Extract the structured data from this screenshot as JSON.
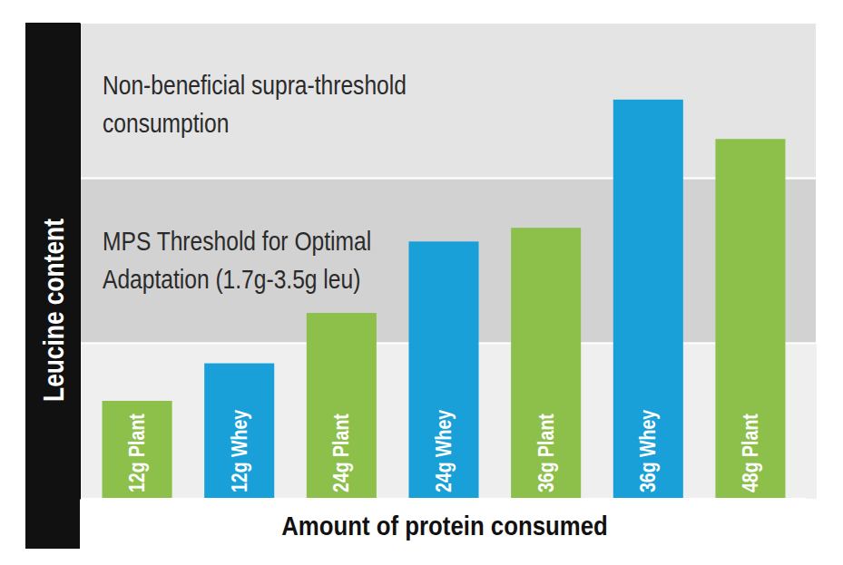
{
  "chart_data": {
    "type": "bar",
    "x_label": "Amount of protein consumed",
    "y_label": "Leucine content",
    "categories": [
      "12g Plant",
      "12g Whey",
      "24g Plant",
      "24g Whey",
      "36g Plant",
      "36g Whey",
      "48g Plant"
    ],
    "values": [
      1.07,
      1.48,
      2.03,
      2.81,
      2.96,
      4.36,
      3.93
    ],
    "colors": [
      "#8dc04b",
      "#1aa0d8",
      "#8dc04b",
      "#1aa0d8",
      "#8dc04b",
      "#1aa0d8",
      "#8dc04b"
    ],
    "ylim": [
      0,
      5.2
    ],
    "grid": false,
    "tick_labels": "x",
    "annotations": [
      {
        "text": "Non-beneficial supra-threshold\nconsumption",
        "range": [
          3.5,
          5.2
        ]
      },
      {
        "text": "MPS Threshold for Optimal\nAdaptation (1.7g-3.5g leu)",
        "range": [
          1.7,
          3.5
        ]
      }
    ]
  }
}
